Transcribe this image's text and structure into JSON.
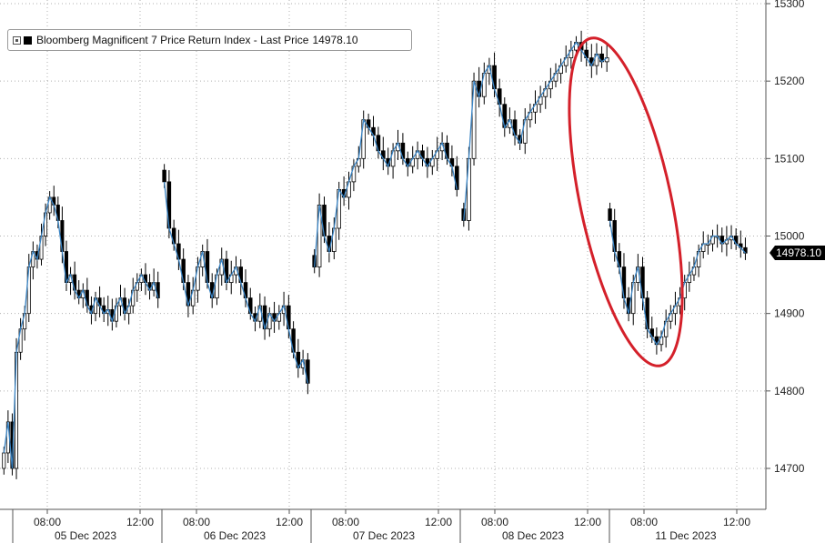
{
  "legend": {
    "label": "Bloomberg Magnificent 7 Price Return Index - Last Price",
    "value": "14978.10"
  },
  "last_price_badge": "14978.10",
  "colors": {
    "up_candle": "#ffffff",
    "down_candle": "#000000",
    "trend_line": "#3a84c4",
    "grid": "#b0b0b0",
    "highlight_ellipse": "#d4202a",
    "badge_bg": "#000000",
    "badge_text": "#ffffff"
  },
  "chart_data": {
    "type": "candlestick",
    "title": "",
    "ylim": [
      14650,
      15300
    ],
    "y_ticks": [
      14700,
      14800,
      14900,
      15000,
      15100,
      15200,
      15300
    ],
    "y_tick_labels": [
      "14700",
      "14800",
      "14900",
      "15000",
      "15100",
      "15200",
      "15300"
    ],
    "grid": true,
    "days": [
      {
        "date": "05 Dec 2023",
        "time_labels": [
          "08:00",
          "12:00"
        ]
      },
      {
        "date": "06 Dec 2023",
        "time_labels": [
          "08:00",
          "12:00"
        ]
      },
      {
        "date": "07 Dec 2023",
        "time_labels": [
          "08:00",
          "12:00"
        ]
      },
      {
        "date": "08 Dec 2023",
        "time_labels": [
          "08:00",
          "12:00"
        ]
      },
      {
        "date": "11 Dec 2023",
        "time_labels": [
          "08:00",
          "12:00"
        ]
      }
    ],
    "series": [
      {
        "values": [
          14720,
          14760,
          14700,
          14850,
          14880,
          14900,
          14960,
          14980,
          14970,
          15000,
          15030,
          15050,
          15040,
          15020,
          14980,
          14940,
          14950,
          14930,
          14920,
          14930,
          14910,
          14900,
          14920,
          14910,
          14900,
          14905,
          14890,
          14910,
          14920,
          14900,
          14910,
          14930,
          14940,
          14950,
          14940,
          14930,
          14940,
          14920,
          15070,
          15010,
          14990,
          14970,
          14940,
          14910,
          14930,
          14960,
          14980,
          14940,
          14920,
          14950,
          14970,
          14940,
          14950,
          14960,
          14940,
          14920,
          14900,
          14890,
          14910,
          14880,
          14900,
          14890,
          14900,
          14910,
          14880,
          14850,
          14830,
          14840,
          14810,
          14960,
          15040,
          15000,
          14980,
          15010,
          15060,
          15050,
          15070,
          15090,
          15100,
          15150,
          15140,
          15130,
          15110,
          15100,
          15090,
          15110,
          15120,
          15100,
          15090,
          15100,
          15110,
          15100,
          15090,
          15100,
          15110,
          15120,
          15100,
          15090,
          15060,
          15020,
          15100,
          15200,
          15180,
          15210,
          15220,
          15190,
          15170,
          15140,
          15150,
          15130,
          15120,
          15150,
          15160,
          15170,
          15180,
          15190,
          15200,
          15210,
          15220,
          15230,
          15240,
          15250,
          15240,
          15230,
          15220,
          15235,
          15225,
          15230,
          15020,
          14980,
          14960,
          14920,
          14900,
          14940,
          14960,
          14920,
          14880,
          14870,
          14860,
          14870,
          14890,
          14900,
          14910,
          14920,
          14940,
          14950,
          14960,
          14980,
          14990,
          14990,
          15000,
          15000,
          14990,
          14995,
          15000,
          14990,
          14985,
          14978
        ]
      }
    ]
  }
}
